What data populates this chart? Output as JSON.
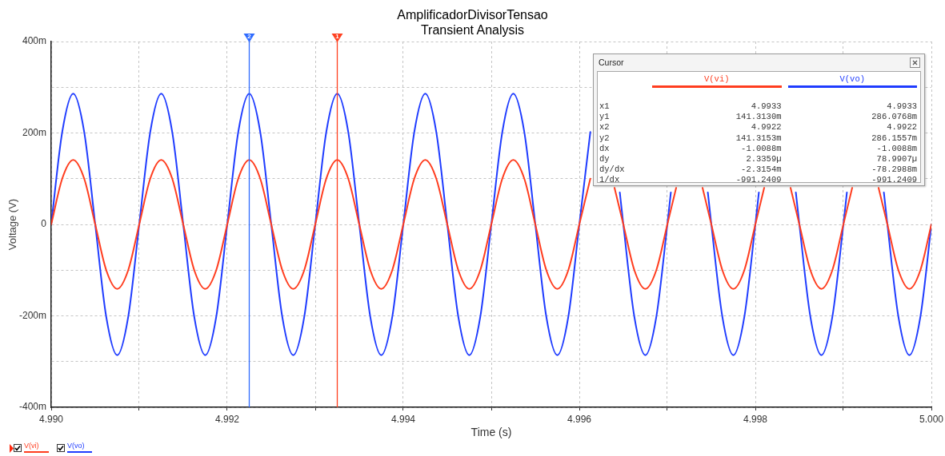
{
  "chart_data": {
    "type": "line",
    "title": "AmplificadorDivisorTensao",
    "subtitle": "Transient Analysis",
    "xlabel": "Time (s)",
    "ylabel": "Voltage (V)",
    "xlim": [
      4.99,
      5
    ],
    "xticks": [
      {
        "value": 4.99,
        "label": "4.990"
      },
      {
        "value": 4.991,
        "label": null
      },
      {
        "value": 4.992,
        "label": "4.992"
      },
      {
        "value": 4.993,
        "label": null
      },
      {
        "value": 4.994,
        "label": "4.994"
      },
      {
        "value": 4.995,
        "label": null
      },
      {
        "value": 4.996,
        "label": "4.996"
      },
      {
        "value": 4.997,
        "label": null
      },
      {
        "value": 4.998,
        "label": "4.998"
      },
      {
        "value": 4.999,
        "label": null
      },
      {
        "value": 5,
        "label": "5.000"
      }
    ],
    "ylim": [
      -400,
      400
    ],
    "yticks": [
      {
        "value": -400,
        "label": "-400m"
      },
      {
        "value": -300,
        "label": null
      },
      {
        "value": -200,
        "label": "-200m"
      },
      {
        "value": -100,
        "label": null
      },
      0,
      {
        "value": 100,
        "label": null
      },
      {
        "value": 200,
        "label": "200m"
      },
      {
        "value": 300,
        "label": null
      },
      {
        "value": 400,
        "label": "400m"
      }
    ],
    "grid": true,
    "legend": "bottom left",
    "series": [
      {
        "name": "V(vi)",
        "color": "#ff3d1f",
        "x": [
          4.99,
          4.990125,
          4.99025,
          4.990375,
          4.9905,
          4.990625,
          4.99075,
          4.990875,
          4.991,
          4.991125,
          4.99125,
          4.991375,
          4.9915,
          4.991625,
          4.99175,
          4.991875,
          4.992,
          4.992125,
          4.99225,
          4.992375,
          4.9925,
          4.992625,
          4.99275,
          4.992875,
          4.993,
          4.993125,
          4.99325,
          4.993375,
          4.9935,
          4.993625,
          4.99375,
          4.993875,
          4.994,
          4.994125,
          4.99425,
          4.994375,
          4.9945,
          4.994625,
          4.99475,
          4.994875,
          4.995,
          4.995125,
          4.99525,
          4.995375,
          4.9955,
          4.995625,
          4.99575,
          4.995875,
          4.996,
          4.996125,
          4.99625,
          4.9964,
          4.9965,
          4.996625,
          4.99675,
          4.996875,
          4.997,
          4.9971,
          4.99725,
          4.9974,
          4.9975,
          4.997625,
          4.99775,
          4.997875,
          4.998,
          4.9981,
          4.99825,
          4.9984,
          4.9985,
          4.998625,
          4.99875,
          4.998875,
          4.999,
          4.9991,
          4.99925,
          4.9994,
          4.9995,
          4.999625,
          4.99975,
          4.999875,
          5
        ],
        "values": [
          0,
          100,
          141,
          100,
          0,
          -100,
          -141,
          -100,
          0,
          100,
          141,
          100,
          0,
          -100,
          -141,
          -100,
          0,
          100,
          141,
          100,
          0,
          -100,
          -141,
          -100,
          0,
          100,
          141,
          100,
          0,
          -100,
          -141,
          -100,
          0,
          100,
          141,
          100,
          0,
          -100,
          -141,
          -100,
          0,
          100,
          141,
          100,
          0,
          -100,
          -141,
          -100,
          0,
          100,
          null,
          80,
          0,
          -100,
          -141,
          -100,
          0,
          80,
          null,
          80,
          0,
          -100,
          -141,
          -100,
          0,
          80,
          null,
          80,
          0,
          -100,
          -141,
          -100,
          0,
          80,
          null,
          80,
          0,
          -100,
          -141,
          -100,
          0
        ]
      },
      {
        "name": "V(vo)",
        "color": "#1f3cff",
        "x": [
          4.99,
          4.990125,
          4.99025,
          4.990375,
          4.9905,
          4.990625,
          4.99075,
          4.990875,
          4.991,
          4.991125,
          4.99125,
          4.991375,
          4.9915,
          4.991625,
          4.99175,
          4.991875,
          4.992,
          4.992125,
          4.99225,
          4.992375,
          4.9925,
          4.992625,
          4.99275,
          4.992875,
          4.993,
          4.993125,
          4.99325,
          4.993375,
          4.9935,
          4.993625,
          4.99375,
          4.993875,
          4.994,
          4.994125,
          4.99425,
          4.994375,
          4.9945,
          4.994625,
          4.99475,
          4.994875,
          4.995,
          4.995125,
          4.99525,
          4.995375,
          4.9955,
          4.995625,
          4.99575,
          4.995875,
          4.996,
          4.996125,
          4.99625,
          4.99646,
          4.9965,
          4.996625,
          4.99675,
          4.996875,
          4.997,
          4.99704,
          4.99725,
          4.99746,
          4.9975,
          4.997625,
          4.99775,
          4.997875,
          4.998,
          4.99804,
          4.99825,
          4.99846,
          4.9985,
          4.998625,
          4.99875,
          4.998875,
          4.999,
          4.99904,
          4.99925,
          4.99946,
          4.9995,
          4.999625,
          4.99975,
          4.999875,
          5
        ],
        "values": [
          0,
          202,
          286,
          202,
          0,
          -202,
          -286,
          -202,
          0,
          202,
          286,
          202,
          0,
          -202,
          -286,
          -202,
          0,
          202,
          286,
          202,
          0,
          -202,
          -286,
          -202,
          0,
          202,
          286,
          202,
          0,
          -202,
          -286,
          -202,
          0,
          202,
          286,
          202,
          0,
          -202,
          -286,
          -202,
          0,
          202,
          286,
          202,
          0,
          -202,
          -286,
          -202,
          0,
          202,
          null,
          70,
          0,
          -202,
          -286,
          -202,
          0,
          70,
          null,
          70,
          0,
          -202,
          -286,
          -202,
          0,
          70,
          null,
          70,
          0,
          -202,
          -286,
          -202,
          0,
          70,
          null,
          70,
          0,
          -202,
          -286,
          -202,
          0
        ]
      }
    ],
    "ref_lines": [
      {
        "axis": "x",
        "value": 4.99325,
        "color": "#ff4020"
      },
      {
        "axis": "x",
        "value": 4.99225,
        "color": "#2f6bff"
      }
    ],
    "annotations": [
      {
        "text": "1",
        "x": 4.99325,
        "y": 400
      },
      {
        "text": "2",
        "x": 4.99225,
        "y": 400
      },
      "Cursor",
      "x1",
      "4.9933",
      "4.9933",
      "y1",
      "141.3130m",
      "286.0768m",
      "x2",
      "4.9922",
      "4.9922",
      "y2",
      "141.3153m",
      "286.1557m",
      "dx",
      "-1.0088m",
      "-1.0088m",
      "dy",
      "2.3359µ",
      "78.9907µ",
      "dy/dx",
      "-2.3154m",
      "-78.2988m",
      "1/dx",
      "-991.2409",
      "-991.2409"
    ]
  }
}
